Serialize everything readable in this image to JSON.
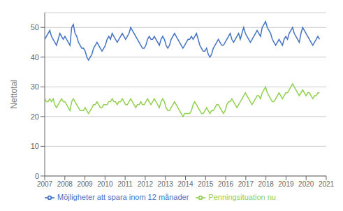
{
  "chart_data": {
    "type": "line",
    "ylabel": "Nettotal",
    "ylim": [
      0,
      55
    ],
    "yticks": [
      0,
      10,
      20,
      30,
      40,
      50
    ],
    "xlim": [
      2007,
      2021
    ],
    "xticks": [
      2007,
      2008,
      2009,
      2010,
      2011,
      2012,
      2013,
      2014,
      2015,
      2016,
      2017,
      2018,
      2019,
      2020,
      2021
    ],
    "grid": true,
    "legend": "lower left",
    "x": [
      2007,
      2007.0838,
      2007.1677,
      2007.2515,
      2007.3354,
      2007.4192,
      2007.5031,
      2007.5869,
      2007.6708,
      2007.7546,
      2007.8384,
      2007.9223,
      2008.0061,
      2008.09,
      2008.1738,
      2008.2577,
      2008.3415,
      2008.4254,
      2008.5092,
      2008.593,
      2008.6769,
      2008.7607,
      2008.8446,
      2008.9284,
      2009.0123,
      2009.0961,
      2009.18,
      2009.2638,
      2009.3476,
      2009.4315,
      2009.5153,
      2009.5992,
      2009.683,
      2009.7669,
      2009.8507,
      2009.9346,
      2010.0184,
      2010.1022,
      2010.1861,
      2010.2699,
      2010.3538,
      2010.4376,
      2010.5215,
      2010.6053,
      2010.6892,
      2010.773,
      2010.8569,
      2010.9407,
      2011.0245,
      2011.1084,
      2011.1922,
      2011.2761,
      2011.3599,
      2011.4438,
      2011.5276,
      2011.6115,
      2011.6953,
      2011.7791,
      2011.863,
      2011.9468,
      2012.0307,
      2012.1145,
      2012.1984,
      2012.2822,
      2012.3661,
      2012.4499,
      2012.5337,
      2012.6176,
      2012.7014,
      2012.7853,
      2012.8691,
      2012.953,
      2013.0368,
      2013.1207,
      2013.2045,
      2013.2883,
      2013.3722,
      2013.456,
      2013.5399,
      2013.6237,
      2013.7076,
      2013.7914,
      2013.8753,
      2013.9591,
      2014.0429,
      2014.1268,
      2014.2106,
      2014.2945,
      2014.3783,
      2014.4622,
      2014.546,
      2014.6299,
      2014.7137,
      2014.7975,
      2014.8814,
      2014.9652,
      2015.0491,
      2015.1329,
      2015.2168,
      2015.3006,
      2015.3845,
      2015.4683,
      2015.5521,
      2015.636,
      2015.7198,
      2015.8037,
      2015.8875,
      2015.9714,
      2016.0552,
      2016.1391,
      2016.2229,
      2016.3067,
      2016.3906,
      2016.4744,
      2016.5583,
      2016.6421,
      2016.726,
      2016.8098,
      2016.8937,
      2016.9775,
      2017.0613,
      2017.1452,
      2017.229,
      2017.3129,
      2017.3967,
      2017.4806,
      2017.5644,
      2017.6483,
      2017.7321,
      2017.816,
      2017.8998,
      2017.9836,
      2018.0675,
      2018.1513,
      2018.2352,
      2018.319,
      2018.4029,
      2018.4867,
      2018.5706,
      2018.6544,
      2018.7382,
      2018.8221,
      2018.9059,
      2018.9898,
      2019.0736,
      2019.1575,
      2019.2413,
      2019.3252,
      2019.409,
      2019.4928,
      2019.5767,
      2019.6605,
      2019.7444,
      2019.8282,
      2019.9121,
      2019.9959,
      2020.0798,
      2020.1636,
      2020.2474,
      2020.3313,
      2020.4151,
      2020.499,
      2020.5828,
      2020.6667
    ],
    "series": [
      {
        "name": "Möjligheter att spara inom 12 månader",
        "color": "#4472c4",
        "values": [
          46,
          47,
          48,
          49,
          47,
          46,
          45,
          44,
          46,
          48,
          47,
          46,
          47,
          46,
          45,
          44,
          50,
          51,
          48,
          47,
          45,
          44,
          43,
          43,
          42,
          40,
          39,
          40,
          41,
          43,
          44,
          45,
          44,
          43,
          42,
          43,
          44,
          46,
          47,
          46,
          48,
          47,
          46,
          45,
          46,
          47,
          48,
          47,
          46,
          47,
          48,
          50,
          49,
          48,
          47,
          46,
          45,
          44,
          43,
          43,
          44,
          46,
          47,
          46,
          46,
          47,
          46,
          45,
          44,
          46,
          47,
          46,
          44,
          43,
          44,
          46,
          47,
          48,
          47,
          46,
          45,
          44,
          43,
          44,
          45,
          46,
          46,
          47,
          46,
          47,
          48,
          46,
          44,
          43,
          42,
          42,
          43,
          41,
          40,
          41,
          43,
          44,
          45,
          46,
          45,
          44,
          44,
          45,
          46,
          47,
          48,
          46,
          45,
          46,
          47,
          48,
          46,
          48,
          50,
          48,
          47,
          46,
          45,
          46,
          47,
          48,
          49,
          48,
          47,
          50,
          51,
          52,
          50,
          49,
          48,
          46,
          45,
          44,
          45,
          46,
          45,
          44,
          46,
          47,
          46,
          48,
          49,
          50,
          48,
          47,
          46,
          45,
          48,
          50,
          49,
          48,
          47,
          46,
          45,
          44,
          45,
          46,
          47,
          46
        ]
      },
      {
        "name": "Penningsituation nu",
        "color": "#92d050",
        "values": [
          26,
          25,
          25,
          26,
          25,
          26,
          24,
          23,
          24,
          25,
          26,
          25,
          25,
          24,
          23,
          22,
          25,
          26,
          25,
          24,
          23,
          22,
          22,
          22,
          23,
          22,
          21,
          22,
          23,
          24,
          24,
          25,
          24,
          23,
          23,
          24,
          24,
          24,
          25,
          25,
          26,
          25,
          25,
          24,
          25,
          25,
          26,
          25,
          24,
          24,
          25,
          26,
          25,
          24,
          23,
          24,
          24,
          25,
          24,
          24,
          25,
          26,
          25,
          24,
          25,
          26,
          25,
          24,
          23,
          25,
          26,
          25,
          23,
          22,
          22,
          23,
          24,
          25,
          24,
          23,
          22,
          21,
          20,
          21,
          21,
          21,
          21,
          22,
          24,
          25,
          24,
          23,
          22,
          21,
          21,
          22,
          23,
          22,
          21,
          22,
          22,
          23,
          24,
          24,
          23,
          22,
          21,
          22,
          24,
          25,
          25,
          26,
          25,
          24,
          23,
          24,
          25,
          26,
          27,
          28,
          27,
          26,
          25,
          24,
          25,
          26,
          27,
          27,
          26,
          28,
          29,
          30,
          28,
          27,
          26,
          25,
          25,
          26,
          27,
          28,
          27,
          26,
          27,
          28,
          28,
          29,
          30,
          31,
          30,
          29,
          28,
          27,
          28,
          29,
          28,
          27,
          28,
          28,
          27,
          26,
          27,
          27,
          28,
          28
        ]
      }
    ]
  }
}
